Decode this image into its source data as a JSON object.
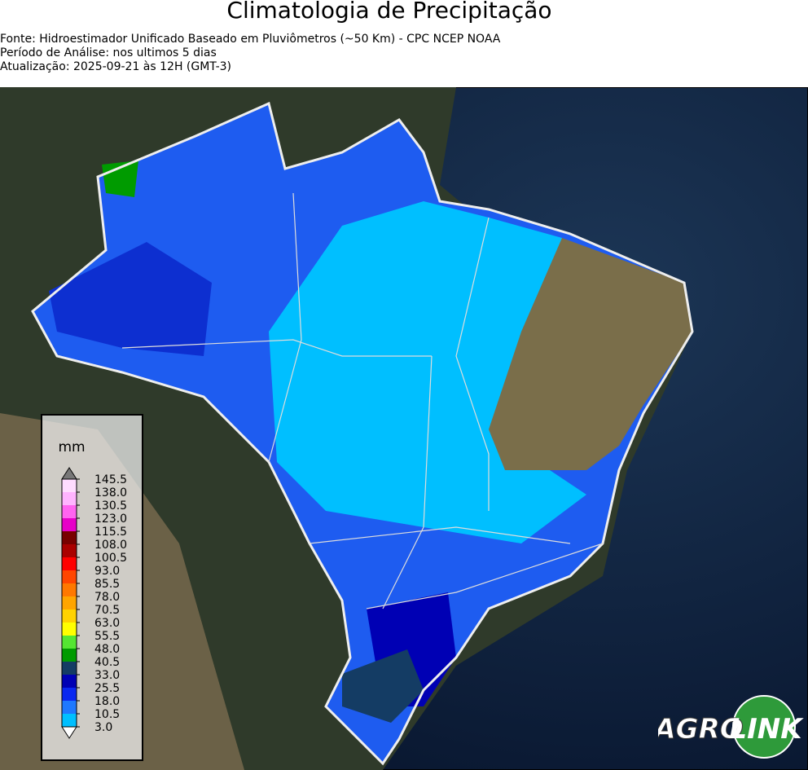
{
  "header": {
    "title": "Climatologia de Precipitação",
    "lines": [
      "Fonte: Hidroestimador Unificado Baseado em Pluviômetros (~50 Km) - CPC NCEP NOAA",
      "Período de Análise: nos ultimos 5 dias",
      "Atualização: 2025-09-21 às 12H (GMT-3)"
    ]
  },
  "colorbar": {
    "unit": "mm",
    "labels": [
      "3.0",
      "10.5",
      "18.0",
      "25.5",
      "33.0",
      "40.5",
      "48.0",
      "55.5",
      "63.0",
      "70.5",
      "78.0",
      "85.5",
      "93.0",
      "100.5",
      "108.0",
      "115.5",
      "123.0",
      "130.5",
      "138.0",
      "145.5"
    ],
    "colors": [
      "#00bfff",
      "#1e78ff",
      "#0a28f0",
      "#0000b4",
      "#143c64",
      "#009b00",
      "#55e632",
      "#ffff00",
      "#ffd200",
      "#ffa500",
      "#ff7800",
      "#ff4600",
      "#ff0000",
      "#aa0000",
      "#780000",
      "#e600c8",
      "#ff64f0",
      "#ffb4ff",
      "#ffdcff"
    ],
    "under_color": "#ffffff",
    "over_color": "#777777"
  },
  "logo": {
    "left": "AGRO",
    "right": "LINK"
  }
}
